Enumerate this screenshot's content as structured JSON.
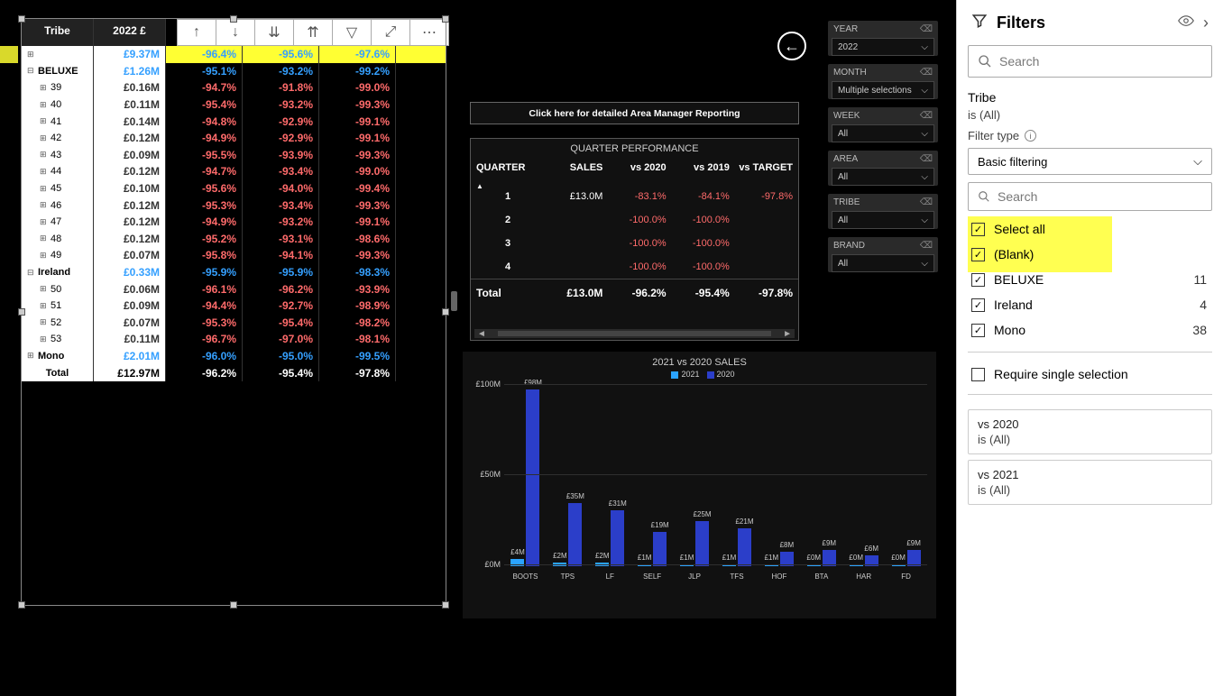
{
  "colors": {
    "bg_black": "#000000",
    "panel_dark": "#111111",
    "slicer_bg": "#2a2a2a",
    "grid": "#2f2f2f",
    "blue_text": "#35a0ff",
    "red_text": "#ff6b6b",
    "bar_2021": "#2aa3ff",
    "bar_2020": "#2b3ec9",
    "highlight": "#ffff33"
  },
  "matrix": {
    "headers": [
      "Tribe",
      "2022 £"
    ],
    "toolbar_icons": [
      "sort-asc",
      "sort-desc",
      "drill-down",
      "drill-up",
      "filter",
      "focus",
      "more"
    ],
    "rows": [
      {
        "label": "",
        "indent": 0,
        "expand": "⊞",
        "hl": true,
        "value": "£9.37M",
        "value_blue": true,
        "pcts": [
          "-96.4%",
          "-95.6%",
          "-97.6%"
        ],
        "pcts_blue": true
      },
      {
        "label": "BELUXE",
        "indent": 0,
        "expand": "⊟",
        "bold": true,
        "value": "£1.26M",
        "value_blue": true,
        "pcts": [
          "-95.1%",
          "-93.2%",
          "-99.2%"
        ],
        "pcts_blue": true
      },
      {
        "label": "39",
        "indent": 1,
        "expand": "⊞",
        "value": "£0.16M",
        "pcts": [
          "-94.7%",
          "-91.8%",
          "-99.0%"
        ]
      },
      {
        "label": "40",
        "indent": 1,
        "expand": "⊞",
        "value": "£0.11M",
        "pcts": [
          "-95.4%",
          "-93.2%",
          "-99.3%"
        ]
      },
      {
        "label": "41",
        "indent": 1,
        "expand": "⊞",
        "value": "£0.14M",
        "pcts": [
          "-94.8%",
          "-92.9%",
          "-99.1%"
        ]
      },
      {
        "label": "42",
        "indent": 1,
        "expand": "⊞",
        "value": "£0.12M",
        "pcts": [
          "-94.9%",
          "-92.9%",
          "-99.1%"
        ]
      },
      {
        "label": "43",
        "indent": 1,
        "expand": "⊞",
        "value": "£0.09M",
        "pcts": [
          "-95.5%",
          "-93.9%",
          "-99.3%"
        ]
      },
      {
        "label": "44",
        "indent": 1,
        "expand": "⊞",
        "value": "£0.12M",
        "pcts": [
          "-94.7%",
          "-93.4%",
          "-99.0%"
        ]
      },
      {
        "label": "45",
        "indent": 1,
        "expand": "⊞",
        "value": "£0.10M",
        "pcts": [
          "-95.6%",
          "-94.0%",
          "-99.4%"
        ]
      },
      {
        "label": "46",
        "indent": 1,
        "expand": "⊞",
        "value": "£0.12M",
        "pcts": [
          "-95.3%",
          "-93.4%",
          "-99.3%"
        ]
      },
      {
        "label": "47",
        "indent": 1,
        "expand": "⊞",
        "value": "£0.12M",
        "pcts": [
          "-94.9%",
          "-93.2%",
          "-99.1%"
        ]
      },
      {
        "label": "48",
        "indent": 1,
        "expand": "⊞",
        "value": "£0.12M",
        "pcts": [
          "-95.2%",
          "-93.1%",
          "-98.6%"
        ]
      },
      {
        "label": "49",
        "indent": 1,
        "expand": "⊞",
        "value": "£0.07M",
        "pcts": [
          "-95.8%",
          "-94.1%",
          "-99.3%"
        ]
      },
      {
        "label": "Ireland",
        "indent": 0,
        "expand": "⊟",
        "bold": true,
        "value": "£0.33M",
        "value_blue": true,
        "pcts": [
          "-95.9%",
          "-95.9%",
          "-98.3%"
        ],
        "pcts_blue": true
      },
      {
        "label": "50",
        "indent": 1,
        "expand": "⊞",
        "value": "£0.06M",
        "pcts": [
          "-96.1%",
          "-96.2%",
          "-93.9%"
        ]
      },
      {
        "label": "51",
        "indent": 1,
        "expand": "⊞",
        "value": "£0.09M",
        "pcts": [
          "-94.4%",
          "-92.7%",
          "-98.9%"
        ]
      },
      {
        "label": "52",
        "indent": 1,
        "expand": "⊞",
        "value": "£0.07M",
        "pcts": [
          "-95.3%",
          "-95.4%",
          "-98.2%"
        ]
      },
      {
        "label": "53",
        "indent": 1,
        "expand": "⊞",
        "value": "£0.11M",
        "pcts": [
          "-96.7%",
          "-97.0%",
          "-98.1%"
        ]
      },
      {
        "label": "Mono",
        "indent": 0,
        "expand": "⊞",
        "bold": true,
        "value": "£2.01M",
        "value_blue": true,
        "pcts": [
          "-96.0%",
          "-95.0%",
          "-99.5%"
        ],
        "pcts_blue": true
      },
      {
        "label": "Total",
        "indent": 0,
        "total": true,
        "value": "£12.97M",
        "pcts": [
          "-96.2%",
          "-95.4%",
          "-97.8%"
        ],
        "pcts_white": true
      }
    ]
  },
  "slicers": [
    {
      "label": "YEAR",
      "value": "2022"
    },
    {
      "label": "MONTH",
      "value": "Multiple selections"
    },
    {
      "label": "WEEK",
      "value": "All"
    },
    {
      "label": "AREA",
      "value": "All"
    },
    {
      "label": "TRIBE",
      "value": "All"
    },
    {
      "label": "BRAND",
      "value": "All"
    }
  ],
  "detail_link": "Click here for detailed Area Manager Reporting",
  "quarter_table": {
    "title": "QUARTER PERFORMANCE",
    "headers": [
      "QUARTER",
      "SALES",
      "vs 2020",
      "vs 2019",
      "vs TARGET"
    ],
    "rows": [
      {
        "q": "1",
        "sales": "£13.0M",
        "v20": "-83.1%",
        "v19": "-84.1%",
        "vt": "-97.8%"
      },
      {
        "q": "2",
        "sales": "",
        "v20": "-100.0%",
        "v19": "-100.0%",
        "vt": ""
      },
      {
        "q": "3",
        "sales": "",
        "v20": "-100.0%",
        "v19": "-100.0%",
        "vt": ""
      },
      {
        "q": "4",
        "sales": "",
        "v20": "-100.0%",
        "v19": "-100.0%",
        "vt": ""
      }
    ],
    "total": {
      "label": "Total",
      "sales": "£13.0M",
      "v20": "-96.2%",
      "v19": "-95.4%",
      "vt": "-97.8%"
    }
  },
  "chart": {
    "title": "2021 vs 2020 SALES",
    "legend": [
      {
        "label": "2021",
        "color": "#2aa3ff"
      },
      {
        "label": "2020",
        "color": "#2b3ec9"
      }
    ],
    "y_axis": {
      "max": 100,
      "ticks": [
        {
          "v": 100,
          "l": "£100M"
        },
        {
          "v": 50,
          "l": "£50M"
        },
        {
          "v": 0,
          "l": "£0M"
        }
      ]
    },
    "categories": [
      "BOOTS",
      "TPS",
      "LF",
      "SELF",
      "JLP",
      "TFS",
      "HOF",
      "BTA",
      "HAR",
      "FD"
    ],
    "series_2021": [
      4,
      2,
      2,
      1,
      1,
      1,
      1,
      0,
      0,
      0
    ],
    "series_2020": [
      98,
      35,
      31,
      19,
      25,
      21,
      8,
      9,
      6,
      9
    ],
    "labels_2021": [
      "£4M",
      "£2M",
      "£2M",
      "£1M",
      "£1M",
      "£1M",
      "£1M",
      "£0M",
      "£0M",
      "£0M"
    ],
    "labels_2020": [
      "£98M",
      "£35M",
      "£31M",
      "£19M",
      "£25M",
      "£21M",
      "£8M",
      "£9M",
      "£6M",
      "£9M"
    ]
  },
  "filters_pane": {
    "title": "Filters",
    "search_placeholder": "Search",
    "active_filter": {
      "name": "Tribe",
      "is": "is (All)",
      "filter_type_label": "Filter type",
      "filter_type_value": "Basic filtering",
      "options_search": "Search",
      "options": [
        {
          "label": "Select all",
          "checked": true,
          "hl": false
        },
        {
          "label": "(Blank)",
          "checked": true,
          "hl": true
        },
        {
          "label": "BELUXE",
          "checked": true,
          "count": "11"
        },
        {
          "label": "Ireland",
          "checked": true,
          "count": "4"
        },
        {
          "label": "Mono",
          "checked": true,
          "count": "38"
        }
      ],
      "require_single": "Require single selection"
    },
    "cards": [
      {
        "name": "vs 2020",
        "is": "is (All)"
      },
      {
        "name": "vs 2021",
        "is": "is (All)"
      }
    ]
  }
}
